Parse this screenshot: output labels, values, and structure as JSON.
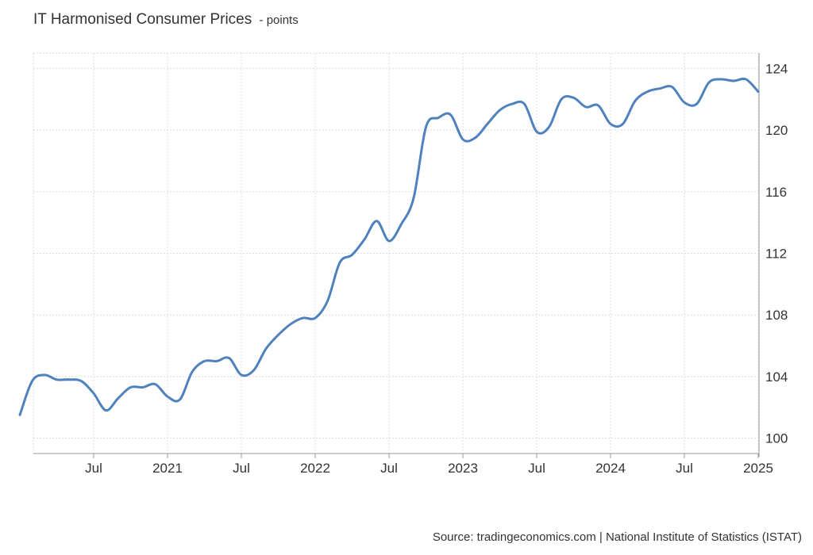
{
  "header": {
    "title": "IT Harmonised Consumer Prices",
    "subtitle": "- points"
  },
  "footer": {
    "source": "Source: tradingeconomics.com | National Institute of Statistics (ISTAT)"
  },
  "chart_data": {
    "type": "line",
    "title": "IT Harmonised Consumer Prices",
    "subtitle": "- points",
    "xlabel": "",
    "ylabel": "",
    "ylim": [
      99,
      125
    ],
    "y_ticks": [
      100,
      104,
      108,
      112,
      116,
      120,
      124
    ],
    "x_ticks": [
      {
        "label": "Jul",
        "month": 6
      },
      {
        "label": "2021",
        "month": 12
      },
      {
        "label": "Jul",
        "month": 18
      },
      {
        "label": "2022",
        "month": 24
      },
      {
        "label": "Jul",
        "month": 30
      },
      {
        "label": "2023",
        "month": 36
      },
      {
        "label": "Jul",
        "month": 42
      },
      {
        "label": "2024",
        "month": 48
      },
      {
        "label": "Jul",
        "month": 54
      },
      {
        "label": "2025",
        "month": 60
      }
    ],
    "grid": true,
    "y_axis_position": "right",
    "line_color": "#4f81bd",
    "series": [
      {
        "dates": [
          "2020-01",
          "2020-02",
          "2020-03",
          "2020-04",
          "2020-05",
          "2020-06",
          "2020-07",
          "2020-08",
          "2020-09",
          "2020-10",
          "2020-11",
          "2020-12",
          "2021-01",
          "2021-02",
          "2021-03",
          "2021-04",
          "2021-05",
          "2021-06",
          "2021-07",
          "2021-08",
          "2021-09",
          "2021-10",
          "2021-11",
          "2021-12",
          "2022-01",
          "2022-02",
          "2022-03",
          "2022-04",
          "2022-05",
          "2022-06",
          "2022-07",
          "2022-08",
          "2022-09",
          "2022-10",
          "2022-11",
          "2022-12",
          "2023-01",
          "2023-02",
          "2023-03",
          "2023-04",
          "2023-05",
          "2023-06",
          "2023-07",
          "2023-08",
          "2023-09",
          "2023-10",
          "2023-11",
          "2023-12",
          "2024-01",
          "2024-02",
          "2024-03",
          "2024-04",
          "2024-05",
          "2024-06",
          "2024-07",
          "2024-08",
          "2024-09",
          "2024-10",
          "2024-11",
          "2024-12",
          "2025-01"
        ],
        "values": [
          101.5,
          103.7,
          104.1,
          103.8,
          103.8,
          103.7,
          102.9,
          101.8,
          102.6,
          103.3,
          103.3,
          103.5,
          102.7,
          102.5,
          104.3,
          105.0,
          105.0,
          105.2,
          104.1,
          104.4,
          105.8,
          106.7,
          107.4,
          107.8,
          107.8,
          108.9,
          111.4,
          111.9,
          112.9,
          114.1,
          112.8,
          113.9,
          115.6,
          120.2,
          120.8,
          121.0,
          119.4,
          119.5,
          120.4,
          121.3,
          121.7,
          121.7,
          119.9,
          120.2,
          122.0,
          122.1,
          121.5,
          121.6,
          120.4,
          120.4,
          121.9,
          122.5,
          122.7,
          122.8,
          121.8,
          121.7,
          123.1,
          123.3,
          123.2,
          123.3,
          122.5
        ]
      }
    ]
  }
}
